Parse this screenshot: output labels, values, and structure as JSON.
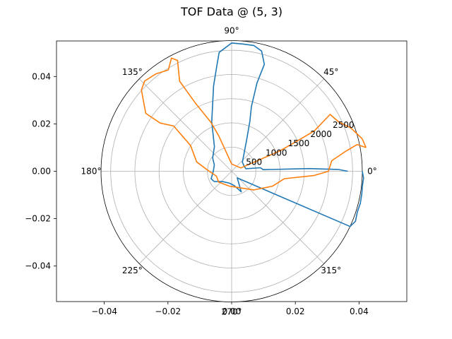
{
  "chart_data": {
    "type": "line",
    "title": "TOF Data @ (5, 3)",
    "cartesian_axes": {
      "xlim": [
        -0.055,
        0.055
      ],
      "ylim": [
        -0.055,
        0.055
      ],
      "xticks": [
        -0.04,
        -0.02,
        0.0,
        0.02,
        0.04
      ],
      "xtick_labels": [
        "−0.04",
        "−0.02",
        "0.00",
        "0.02",
        "0.04"
      ],
      "yticks": [
        -0.04,
        -0.02,
        0.0,
        0.02,
        0.04
      ],
      "ytick_labels": [
        "−0.04",
        "−0.02",
        "0.00",
        "0.02",
        "0.04"
      ]
    },
    "polar_axes": {
      "rmax": 2700,
      "rticks": [
        500,
        1000,
        1500,
        2000,
        2500
      ],
      "rtick_labels": [
        "500",
        "1000",
        "1500",
        "2000",
        "2500"
      ],
      "angle_ticks_deg": [
        0,
        45,
        90,
        135,
        180,
        225,
        270,
        315
      ],
      "angle_tick_labels": [
        "0°",
        "45°",
        "90°",
        "135°",
        "180°",
        "225°",
        "270°",
        "315°"
      ],
      "grid": true
    },
    "series": [
      {
        "color": "#1f77b4",
        "points": [
          {
            "theta": 0,
            "r": 2700
          },
          {
            "theta": -3,
            "r": 2730
          },
          {
            "theta": -6,
            "r": 2720
          },
          {
            "theta": -10,
            "r": 2730
          },
          {
            "theta": -14,
            "r": 2740
          },
          {
            "theta": -18,
            "r": 2730
          },
          {
            "theta": -22,
            "r": 2760
          },
          {
            "theta": -25,
            "r": 2700
          },
          {
            "theta": -50,
            "r": 180
          },
          {
            "theta": -65,
            "r": 470
          },
          {
            "theta": -80,
            "r": 300
          },
          {
            "theta": -100,
            "r": 250
          },
          {
            "theta": -130,
            "r": 280
          },
          {
            "theta": -150,
            "r": 420
          },
          {
            "theta": -160,
            "r": 450
          },
          {
            "theta": -180,
            "r": 380
          },
          {
            "theta": 160,
            "r": 380
          },
          {
            "theta": 145,
            "r": 480
          },
          {
            "theta": 125,
            "r": 620
          },
          {
            "theta": 112,
            "r": 1100
          },
          {
            "theta": 102,
            "r": 1800
          },
          {
            "theta": 98,
            "r": 2200
          },
          {
            "theta": 96,
            "r": 2470
          },
          {
            "theta": 90,
            "r": 2650
          },
          {
            "theta": 85,
            "r": 2640
          },
          {
            "theta": 80,
            "r": 2640
          },
          {
            "theta": 76,
            "r": 2560
          },
          {
            "theta": 73,
            "r": 2310
          },
          {
            "theta": 74,
            "r": 1900
          },
          {
            "theta": 73,
            "r": 1400
          },
          {
            "theta": 70,
            "r": 1100
          },
          {
            "theta": 64,
            "r": 700
          },
          {
            "theta": 40,
            "r": 290
          },
          {
            "theta": 20,
            "r": 280
          },
          {
            "theta": 10,
            "r": 300
          },
          {
            "theta": 7,
            "r": 600
          },
          {
            "theta": 3,
            "r": 650
          },
          {
            "theta": 2,
            "r": 1600
          },
          {
            "theta": 1,
            "r": 2200
          },
          {
            "theta": 0,
            "r": 2400
          }
        ]
      },
      {
        "color": "#ff7f0e",
        "points": [
          {
            "theta": 10,
            "r": 2820
          },
          {
            "theta": 14,
            "r": 2780
          },
          {
            "theta": 20,
            "r": 2620
          },
          {
            "theta": 25,
            "r": 2430
          },
          {
            "theta": 30,
            "r": 2350
          },
          {
            "theta": 26,
            "r": 1900
          },
          {
            "theta": 25,
            "r": 1550
          },
          {
            "theta": 23,
            "r": 1100
          },
          {
            "theta": 20,
            "r": 200
          },
          {
            "theta": 90,
            "r": 150
          },
          {
            "theta": 110,
            "r": 780
          },
          {
            "theta": 113,
            "r": 1100
          },
          {
            "theta": 118,
            "r": 1600
          },
          {
            "theta": 120,
            "r": 2150
          },
          {
            "theta": 116,
            "r": 2550
          },
          {
            "theta": 118,
            "r": 2650
          },
          {
            "theta": 122,
            "r": 2470
          },
          {
            "theta": 128,
            "r": 2550
          },
          {
            "theta": 134,
            "r": 2590
          },
          {
            "theta": 138,
            "r": 2510
          },
          {
            "theta": 146,
            "r": 2140
          },
          {
            "theta": 146,
            "r": 1780
          },
          {
            "theta": 142,
            "r": 1520
          },
          {
            "theta": 148,
            "r": 1000
          },
          {
            "theta": 165,
            "r": 750
          },
          {
            "theta": 175,
            "r": 530
          },
          {
            "theta": -162,
            "r": 330
          },
          {
            "theta": -140,
            "r": 350
          },
          {
            "theta": -100,
            "r": 310
          },
          {
            "theta": -60,
            "r": 400
          },
          {
            "theta": -40,
            "r": 600
          },
          {
            "theta": -20,
            "r": 900
          },
          {
            "theta": -8,
            "r": 1100
          },
          {
            "theta": -3,
            "r": 1700
          },
          {
            "theta": 0,
            "r": 2000
          },
          {
            "theta": 6,
            "r": 2080
          },
          {
            "theta": 10,
            "r": 2400
          },
          {
            "theta": 12,
            "r": 2650
          },
          {
            "theta": 10,
            "r": 2820
          }
        ]
      }
    ]
  }
}
